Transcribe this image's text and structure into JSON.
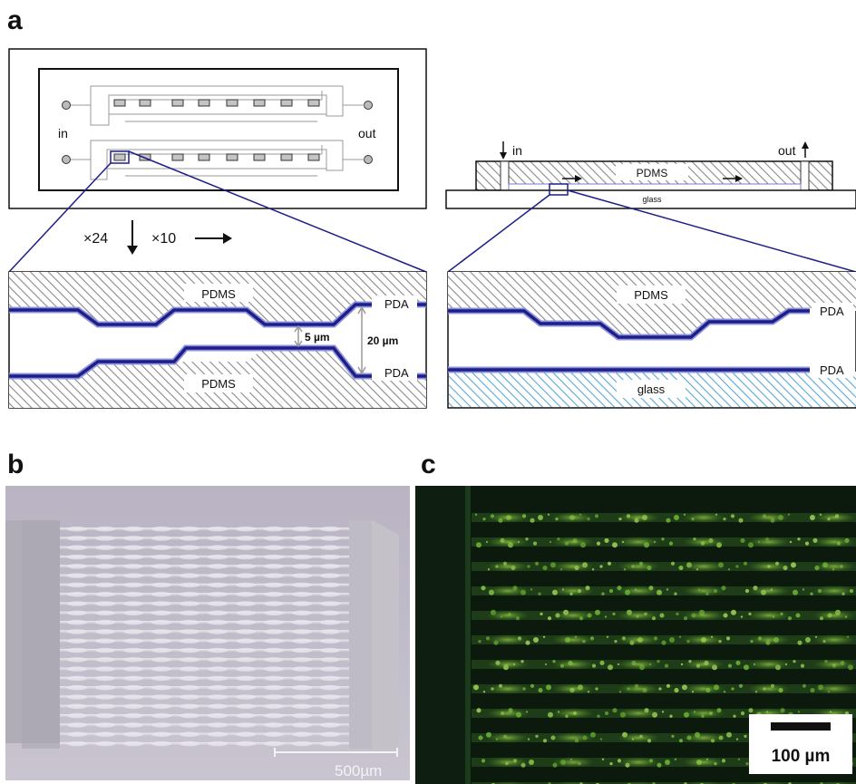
{
  "panels": {
    "a": "a",
    "b": "b",
    "c": "c"
  },
  "chip_top_view": {
    "inlet_label": "in",
    "outlet_label": "out"
  },
  "multipliers": {
    "vertical": "×24",
    "horizontal": "×10"
  },
  "chip_side_view": {
    "inlet_label": "in",
    "outlet_label": "out",
    "body_label": "PDMS",
    "substrate_label": "glass"
  },
  "cross_section_left": {
    "top_label": "PDMS",
    "bottom_label": "PDMS",
    "top_coating_label": "PDA",
    "bottom_coating_label": "PDA",
    "narrow_gap_label": "5 µm",
    "wide_gap_label": "20 µm"
  },
  "cross_section_right": {
    "top_label": "PDMS",
    "bottom_label": "glass",
    "top_coating_label": "PDA",
    "bottom_coating_label": "PDA"
  },
  "micrograph_b": {
    "scale_bar_label": "500µm"
  },
  "micrograph_c": {
    "scale_bar_label": "100 µm"
  },
  "colors": {
    "pda_blue": "#1c1f8a",
    "glass_hatch": "#5aa7d6",
    "hatch_gray": "#8a8a8a",
    "fluorescence_green": "#7fc23a"
  }
}
